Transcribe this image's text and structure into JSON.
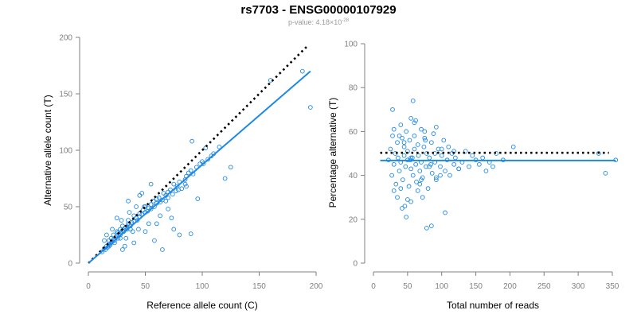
{
  "header": {
    "title": "rs7703 - ENSG00000107929",
    "pvalue_label": "p-value: 4.18×10",
    "pvalue_exponent": "-28"
  },
  "colors": {
    "points": "#1e88e5",
    "fit_line": "#1e88e5",
    "reference_line": "#000000",
    "axis": "#7f7f7f",
    "title": "#000000",
    "subtitle": "#9a9a9a"
  },
  "chart_data": [
    {
      "type": "scatter",
      "xlabel": "Reference allele count (C)",
      "ylabel": "Alternative allele count (T)",
      "xlim": [
        0,
        200
      ],
      "ylim": [
        0,
        200
      ],
      "xticks": [
        0,
        50,
        100,
        150,
        200
      ],
      "yticks": [
        0,
        50,
        100,
        150,
        200
      ],
      "fit_line": {
        "from": [
          0,
          0
        ],
        "to": [
          195,
          170
        ]
      },
      "reference_line": {
        "from": [
          0,
          0
        ],
        "to": [
          193,
          193
        ]
      },
      "points": {
        "x": [
          12,
          14,
          15,
          16,
          17,
          18,
          18,
          19,
          20,
          20,
          21,
          22,
          22,
          23,
          24,
          25,
          25,
          26,
          27,
          28,
          28,
          29,
          30,
          30,
          31,
          32,
          33,
          34,
          35,
          35,
          36,
          37,
          38,
          40,
          40,
          42,
          43,
          45,
          45,
          47,
          48,
          50,
          50,
          52,
          53,
          55,
          55,
          57,
          58,
          60,
          60,
          62,
          63,
          65,
          66,
          68,
          70,
          70,
          72,
          74,
          75,
          77,
          78,
          80,
          82,
          85,
          86,
          88,
          90,
          92,
          95,
          98,
          100,
          103,
          105,
          108,
          110,
          115,
          120,
          125,
          160,
          188,
          195,
          14,
          16,
          18,
          21,
          23,
          26,
          29,
          33,
          36,
          39,
          44,
          49,
          53,
          58,
          63,
          68,
          73,
          79,
          86,
          91,
          96,
          101,
          30,
          35,
          40,
          45,
          50,
          55,
          60,
          65,
          70,
          75,
          80,
          85,
          90,
          25,
          28,
          32,
          37,
          42,
          47
        ],
        "y": [
          10,
          13,
          12,
          15,
          14,
          17,
          20,
          16,
          18,
          22,
          19,
          21,
          25,
          20,
          23,
          24,
          28,
          22,
          26,
          25,
          30,
          27,
          29,
          33,
          28,
          31,
          32,
          30,
          35,
          38,
          34,
          33,
          36,
          37,
          42,
          40,
          38,
          44,
          41,
          43,
          47,
          45,
          50,
          46,
          49,
          52,
          48,
          55,
          50,
          53,
          57,
          58,
          54,
          56,
          62,
          60,
          63,
          58,
          65,
          61,
          70,
          64,
          68,
          72,
          66,
          74,
          77,
          80,
          82,
          79,
          85,
          88,
          90,
          102,
          92,
          95,
          97,
          103,
          75,
          85,
          162,
          170,
          138,
          20,
          25,
          15,
          30,
          18,
          27,
          38,
          22,
          45,
          28,
          30,
          50,
          35,
          20,
          42,
          55,
          40,
          65,
          68,
          108,
          57,
          88,
          12,
          55,
          18,
          60,
          28,
          70,
          35,
          12,
          48,
          30,
          25,
          70,
          26,
          40,
          22,
          15,
          30,
          50,
          62
        ]
      }
    },
    {
      "type": "scatter",
      "xlabel": "Total number of reads",
      "ylabel": "Percentage alternative (T)",
      "xlim": [
        0,
        350
      ],
      "ylim": [
        0,
        100
      ],
      "xticks": [
        0,
        50,
        100,
        150,
        200,
        250,
        300,
        350
      ],
      "yticks": [
        0,
        20,
        40,
        60,
        80,
        100
      ],
      "fit_line": {
        "from": [
          10,
          46.8
        ],
        "to": [
          355,
          46.8
        ]
      },
      "reference_line": {
        "from": [
          10,
          50.3
        ],
        "to": [
          345,
          50.3
        ]
      },
      "points": {
        "x": [
          22,
          25,
          27,
          28,
          30,
          30,
          32,
          33,
          35,
          36,
          38,
          40,
          40,
          42,
          43,
          45,
          45,
          47,
          48,
          50,
          50,
          52,
          53,
          55,
          55,
          57,
          58,
          60,
          60,
          62,
          63,
          65,
          66,
          68,
          70,
          70,
          72,
          74,
          75,
          77,
          78,
          80,
          82,
          85,
          86,
          88,
          90,
          92,
          95,
          98,
          100,
          103,
          105,
          108,
          110,
          112,
          115,
          118,
          120,
          125,
          130,
          135,
          140,
          145,
          150,
          155,
          160,
          165,
          170,
          175,
          180,
          190,
          205,
          330,
          340,
          355,
          28,
          35,
          42,
          48,
          55,
          58,
          65,
          72,
          78,
          85,
          92,
          98,
          105,
          118,
          125,
          40,
          45,
          50,
          55,
          62,
          70,
          75,
          82,
          90,
          30,
          38,
          46,
          54,
          60,
          68,
          76,
          84,
          92,
          100
        ],
        "y": [
          47,
          52,
          40,
          58,
          45,
          61,
          50,
          36,
          55,
          48,
          42,
          63,
          46,
          57,
          38,
          49,
          53,
          44,
          60,
          47,
          51,
          35,
          56,
          43,
          66,
          48,
          40,
          52,
          58,
          45,
          37,
          54,
          49,
          42,
          61,
          46,
          39,
          53,
          57,
          44,
          50,
          34,
          48,
          55,
          41,
          59,
          46,
          38,
          52,
          44,
          49,
          56,
          42,
          47,
          53,
          40,
          50,
          45,
          48,
          43,
          46,
          51,
          44,
          49,
          47,
          45,
          48,
          42,
          46,
          44,
          50,
          47,
          53,
          50,
          41,
          47,
          70,
          30,
          25,
          21,
          28,
          74,
          33,
          30,
          16,
          17,
          62,
          40,
          23,
          51,
          43,
          34,
          55,
          29,
          48,
          65,
          38,
          60,
          44,
          50,
          33,
          58,
          26,
          47,
          64,
          36,
          56,
          45,
          39,
          52
        ]
      }
    }
  ]
}
